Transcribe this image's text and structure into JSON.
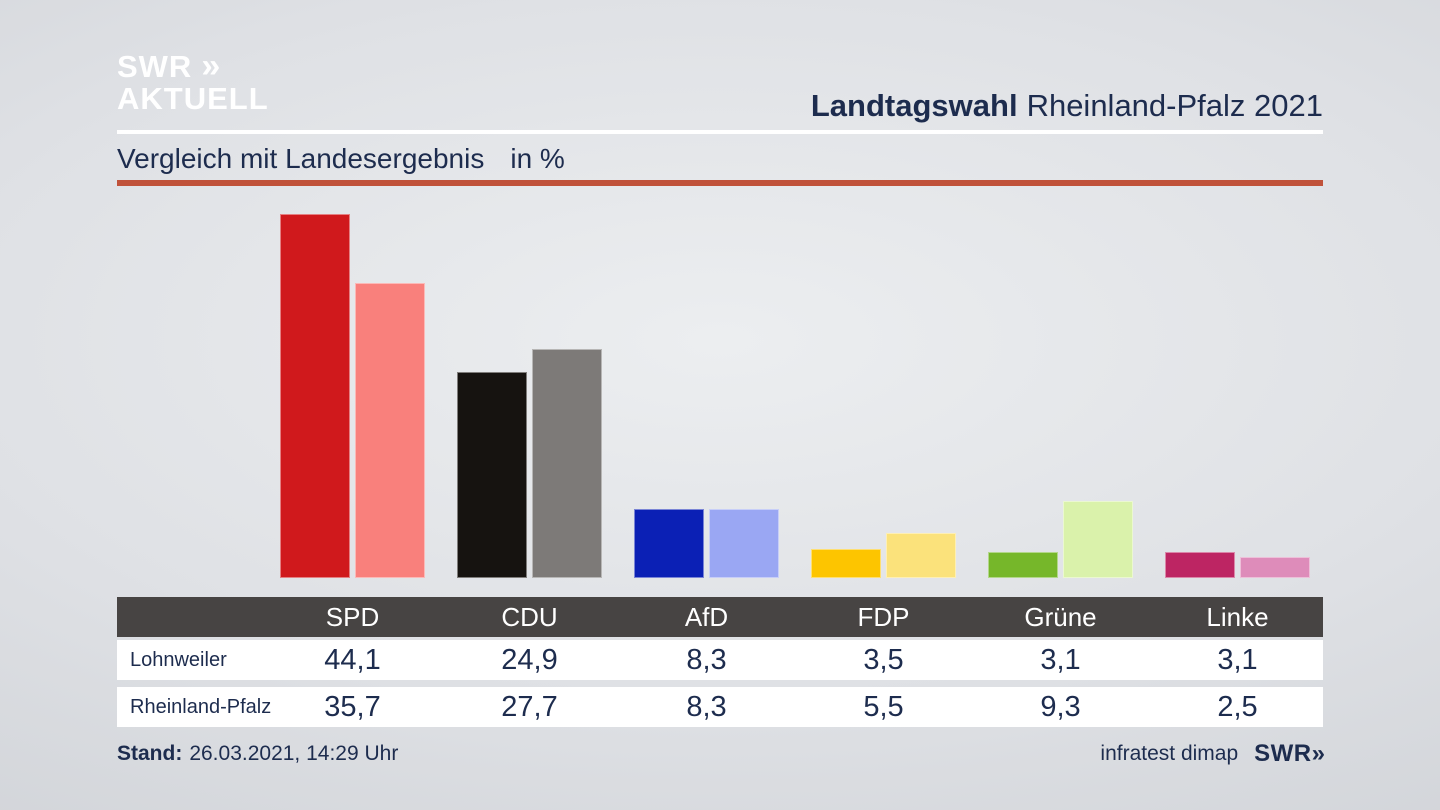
{
  "brand": {
    "line1": "SWR",
    "chevron": "»",
    "line2": "AKTUELL"
  },
  "header": {
    "title_bold": "Landtagswahl",
    "title_rest": "Rheinland-Pfalz 2021"
  },
  "subtitle": {
    "text": "Vergleich mit Landesergebnis",
    "unit": "in %"
  },
  "chart_data": {
    "type": "bar",
    "title": "Vergleich mit Landesergebnis in %",
    "categories": [
      "SPD",
      "CDU",
      "AfD",
      "FDP",
      "Grüne",
      "Linke"
    ],
    "series": [
      {
        "name": "Lohnweiler",
        "values": [
          44.1,
          24.9,
          8.3,
          3.5,
          3.1,
          3.1
        ],
        "colors": [
          "#d0191c",
          "#161310",
          "#0b20b5",
          "#fdc500",
          "#76b72a",
          "#bd2563"
        ]
      },
      {
        "name": "Rheinland-Pfalz",
        "values": [
          35.7,
          27.7,
          8.3,
          5.5,
          9.3,
          2.5
        ],
        "colors": [
          "#f9807c",
          "#7d7a78",
          "#9aa7f3",
          "#fbe27b",
          "#daf2ab",
          "#de8cba"
        ]
      }
    ],
    "unit": "%",
    "ylim": [
      0,
      47.5
    ],
    "grid": false,
    "legend_position": "table-below"
  },
  "table": {
    "header_bg": "#474443",
    "header": [
      "SPD",
      "CDU",
      "AfD",
      "FDP",
      "Grüne",
      "Linke"
    ],
    "rows": [
      {
        "label": "Lohnweiler",
        "values": [
          "44,1",
          "24,9",
          "8,3",
          "3,5",
          "3,1",
          "3,1"
        ]
      },
      {
        "label": "Rheinland-Pfalz",
        "values": [
          "35,7",
          "27,7",
          "8,3",
          "5,5",
          "9,3",
          "2,5"
        ]
      }
    ]
  },
  "footer": {
    "stand_label": "Stand:",
    "stand_value": "26.03.2021, 14:29 Uhr",
    "source": "infratest dimap",
    "network": "SWR",
    "chevron": "»"
  },
  "colors": {
    "accent_line": "#c0523a",
    "text_navy": "#1d2c4e",
    "table_header_bg": "#474443",
    "separator_white": "#ffffff"
  }
}
